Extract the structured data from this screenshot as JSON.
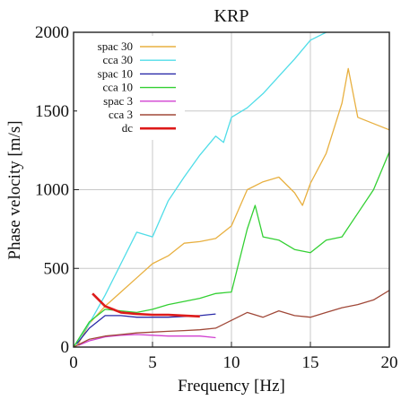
{
  "chart_data": {
    "type": "line",
    "title": "KRP",
    "xlabel": "Frequency [Hz]",
    "ylabel": "Phase velocity [m/s]",
    "xlim": [
      0,
      20
    ],
    "ylim": [
      0,
      2000
    ],
    "xticks": [
      "0",
      "5",
      "10",
      "15",
      "20"
    ],
    "yticks": [
      "0",
      "500",
      "1000",
      "1500",
      "2000"
    ],
    "grid": true,
    "legend_position": "top-left",
    "series": [
      {
        "name": "spac 30",
        "color": "#e8b040",
        "x": [
          0.3,
          1,
          2,
          3,
          4,
          5,
          6,
          7,
          8,
          9,
          10,
          11,
          12,
          13,
          14,
          14.5,
          15,
          16,
          17,
          17.4,
          18,
          19,
          20
        ],
        "y": [
          20,
          150,
          260,
          350,
          440,
          530,
          580,
          660,
          670,
          690,
          770,
          1000,
          1050,
          1080,
          980,
          900,
          1040,
          1230,
          1550,
          1770,
          1460,
          1420,
          1380
        ]
      },
      {
        "name": "cca 30",
        "color": "#50dde8",
        "x": [
          0,
          1,
          2,
          3,
          4,
          5,
          6,
          7,
          8,
          9,
          9.5,
          10,
          11,
          12,
          13,
          14,
          15,
          16
        ],
        "y": [
          0,
          150,
          330,
          530,
          730,
          700,
          930,
          1080,
          1220,
          1340,
          1300,
          1460,
          1520,
          1610,
          1720,
          1830,
          1950,
          2000
        ]
      },
      {
        "name": "spac 10",
        "color": "#2a2aa8",
        "x": [
          0.2,
          1,
          2,
          3,
          4,
          5,
          6,
          7,
          8,
          9
        ],
        "y": [
          20,
          120,
          200,
          200,
          190,
          190,
          190,
          195,
          200,
          210
        ]
      },
      {
        "name": "cca 10",
        "color": "#33d033",
        "x": [
          0,
          1,
          2,
          3,
          4,
          5,
          6,
          7,
          8,
          9,
          10,
          11,
          11.5,
          12,
          13,
          14,
          15,
          16,
          17,
          18,
          19,
          20
        ],
        "y": [
          0,
          160,
          240,
          230,
          220,
          240,
          270,
          290,
          310,
          340,
          350,
          750,
          900,
          700,
          680,
          620,
          600,
          680,
          700,
          850,
          1000,
          1240
        ]
      },
      {
        "name": "spac 3",
        "color": "#d040d0",
        "x": [
          0.3,
          1,
          2,
          3,
          4,
          5,
          6,
          7,
          8,
          9
        ],
        "y": [
          10,
          40,
          65,
          75,
          80,
          75,
          70,
          70,
          70,
          60
        ]
      },
      {
        "name": "cca 3",
        "color": "#a04838",
        "x": [
          0,
          1,
          2,
          3,
          4,
          5,
          6,
          7,
          8,
          9,
          10,
          11,
          12,
          13,
          14,
          15,
          16,
          17,
          18,
          19,
          20
        ],
        "y": [
          0,
          50,
          70,
          80,
          90,
          95,
          100,
          105,
          110,
          120,
          170,
          220,
          190,
          230,
          200,
          190,
          220,
          250,
          270,
          300,
          360
        ]
      },
      {
        "name": "dc",
        "color": "#dd1a1a",
        "x": [
          1.2,
          2,
          3,
          4,
          5,
          6,
          7,
          8
        ],
        "y": [
          340,
          260,
          220,
          210,
          205,
          205,
          200,
          195
        ]
      }
    ]
  }
}
